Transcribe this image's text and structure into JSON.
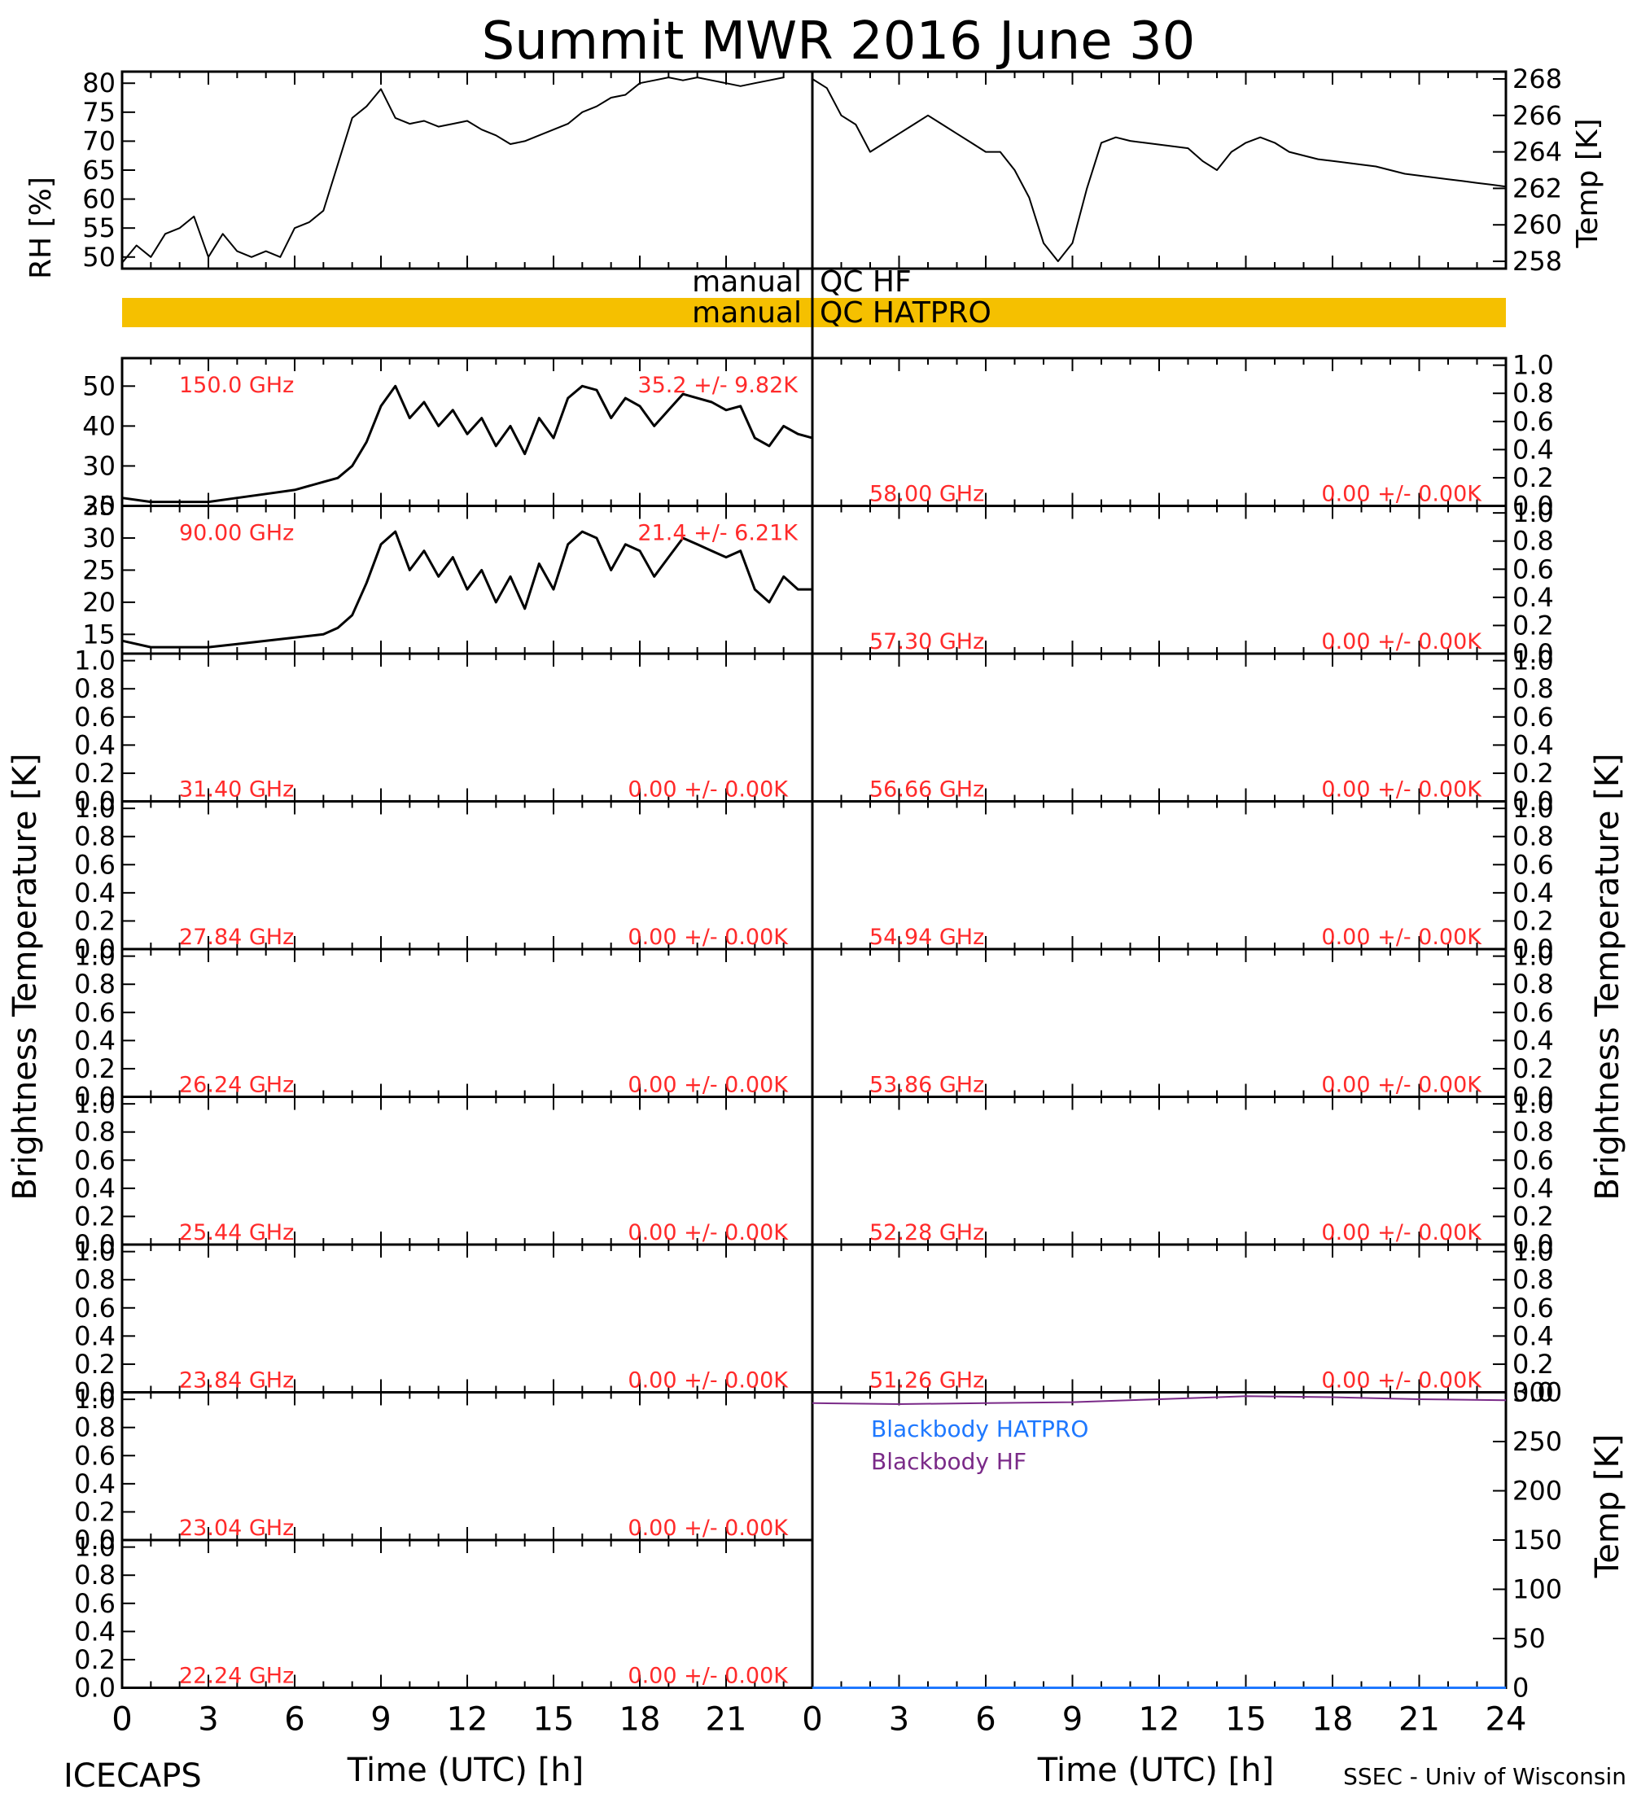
{
  "header": {
    "title": "Summit MWR 2016 June 30"
  },
  "footer": {
    "left_label": "ICECAPS",
    "credit": "SSEC - Univ of Wisconsin",
    "xlabel": "Time (UTC) [h]"
  },
  "axes": {
    "left_ylabel": "Brightness Temperature [K]",
    "right_ylabel": "Brightness Temperature [K]",
    "rh_ylabel": "RH [%]",
    "temp_ylabel": "Temp [K]",
    "bb_ylabel": "Temp [K]"
  },
  "qc": {
    "hf_left": "manual",
    "hf_right": "QC HF",
    "hatpro_left": "manual",
    "hatpro_right": "QC HATPRO",
    "hatpro_color": "#f5c000"
  },
  "legend": {
    "hatpro": "Blackbody HATPRO",
    "hf": "Blackbody HF",
    "hatpro_color": "#1e78ff",
    "hf_color": "#7a2a88"
  },
  "chart_data": [
    {
      "type": "line",
      "id": "rh",
      "ylabel": "RH [%]",
      "xlim": [
        0,
        24
      ],
      "ylim": [
        48,
        82
      ],
      "yticks": [
        50,
        55,
        60,
        65,
        70,
        75,
        80
      ],
      "x": [
        0,
        0.5,
        1,
        1.5,
        2,
        2.5,
        3,
        3.5,
        4,
        4.5,
        5,
        5.5,
        6,
        6.5,
        7,
        7.5,
        8,
        8.5,
        9,
        9.5,
        10,
        10.5,
        11,
        11.5,
        12,
        12.5,
        13,
        13.5,
        14,
        14.5,
        15,
        15.5,
        16,
        16.5,
        17,
        17.5,
        18,
        18.5,
        19,
        19.5,
        20,
        20.5,
        21,
        21.5,
        22,
        22.5,
        23
      ],
      "y": [
        49,
        52,
        50,
        54,
        55,
        57,
        50,
        54,
        51,
        50,
        51,
        50,
        55,
        56,
        58,
        66,
        74,
        76,
        79,
        74,
        73,
        73.5,
        72.5,
        73,
        73.5,
        72,
        71,
        69.5,
        70,
        71,
        72,
        73,
        75,
        76,
        77.5,
        78,
        80,
        80.5,
        81,
        80.5,
        81,
        80.5,
        80,
        79.5,
        80,
        80.5,
        81
      ]
    },
    {
      "type": "line",
      "id": "temp",
      "ylabel": "Temp [K]",
      "xlim": [
        0,
        24
      ],
      "ylim": [
        257.6,
        268.4
      ],
      "yticks": [
        258,
        260,
        262,
        264,
        266,
        268
      ],
      "x": [
        0,
        0.5,
        1,
        1.5,
        2,
        2.5,
        3,
        3.5,
        4,
        4.5,
        5,
        5.5,
        6,
        6.5,
        7,
        7.5,
        8,
        8.5,
        9,
        9.5,
        10,
        10.5,
        11,
        11.5,
        12,
        12.5,
        13,
        13.5,
        14,
        14.5,
        15,
        15.5,
        16,
        16.5,
        17,
        17.5,
        18,
        18.5,
        19,
        19.5,
        20,
        20.5,
        21,
        21.5,
        22,
        22.5,
        23,
        23.5,
        24
      ],
      "y": [
        268,
        267.5,
        266,
        265.5,
        264,
        264.5,
        265,
        265.5,
        266,
        265.5,
        265,
        264.5,
        264,
        264,
        263,
        261.5,
        259,
        258,
        259,
        262,
        264.5,
        264.8,
        264.6,
        264.5,
        264.4,
        264.3,
        264.2,
        263.5,
        263,
        264,
        264.5,
        264.8,
        264.5,
        264,
        263.8,
        263.6,
        263.5,
        263.4,
        263.3,
        263.2,
        263,
        262.8,
        262.7,
        262.6,
        262.5,
        262.4,
        262.3,
        262.2,
        262.1
      ]
    },
    {
      "type": "line",
      "id": "ch150",
      "label": "150.0 GHz",
      "stats": "35.2 +/- 9.82K",
      "xlim": [
        0,
        24
      ],
      "ylim": [
        20,
        57
      ],
      "yticks": [
        20,
        30,
        40,
        50
      ],
      "x": [
        0,
        1,
        2,
        3,
        4,
        5,
        6,
        7,
        7.5,
        8,
        8.5,
        9,
        9.5,
        10,
        10.5,
        11,
        11.5,
        12,
        12.5,
        13,
        13.5,
        14,
        14.5,
        15,
        15.5,
        16,
        16.5,
        17,
        17.5,
        18,
        18.5,
        19,
        19.5,
        20,
        20.5,
        21,
        21.5,
        22,
        22.5,
        23,
        23.5,
        24
      ],
      "y": [
        22,
        21,
        21,
        21,
        22,
        23,
        24,
        26,
        27,
        30,
        36,
        45,
        50,
        42,
        46,
        40,
        44,
        38,
        42,
        35,
        40,
        33,
        42,
        37,
        47,
        50,
        49,
        42,
        47,
        45,
        40,
        44,
        48,
        47,
        46,
        44,
        45,
        37,
        35,
        40,
        38,
        37
      ]
    },
    {
      "type": "line",
      "id": "ch90",
      "label": "90.00 GHz",
      "stats": "21.4 +/- 6.21K",
      "xlim": [
        0,
        24
      ],
      "ylim": [
        12,
        35
      ],
      "yticks": [
        15,
        20,
        25,
        30,
        35
      ],
      "x": [
        0,
        1,
        2,
        3,
        4,
        5,
        6,
        7,
        7.5,
        8,
        8.5,
        9,
        9.5,
        10,
        10.5,
        11,
        11.5,
        12,
        12.5,
        13,
        13.5,
        14,
        14.5,
        15,
        15.5,
        16,
        16.5,
        17,
        17.5,
        18,
        18.5,
        19,
        19.5,
        20,
        20.5,
        21,
        21.5,
        22,
        22.5,
        23,
        23.5,
        24
      ],
      "y": [
        14,
        13,
        13,
        13,
        13.5,
        14,
        14.5,
        15,
        16,
        18,
        23,
        29,
        31,
        25,
        28,
        24,
        27,
        22,
        25,
        20,
        24,
        19,
        26,
        22,
        29,
        31,
        30,
        25,
        29,
        28,
        24,
        27,
        30,
        29,
        28,
        27,
        28,
        22,
        20,
        24,
        22,
        22
      ]
    },
    {
      "type": "line",
      "id": "bb",
      "ylabel": "Temp [K]",
      "xlim": [
        0,
        24
      ],
      "ylim": [
        0,
        300
      ],
      "yticks": [
        0,
        50,
        100,
        150,
        200,
        250,
        300
      ],
      "series": [
        {
          "name": "Blackbody HATPRO",
          "x": [
            0,
            24
          ],
          "y": [
            0,
            0
          ]
        },
        {
          "name": "Blackbody HF",
          "x": [
            0,
            3,
            6,
            9,
            12,
            15,
            18,
            21,
            24
          ],
          "y": [
            289,
            288,
            289,
            290,
            293,
            296,
            295,
            293,
            292
          ]
        }
      ]
    }
  ],
  "empty_panels": {
    "left": [
      {
        "freq": "31.40 GHz",
        "stats": "0.00 +/- 0.00K"
      },
      {
        "freq": "27.84 GHz",
        "stats": "0.00 +/- 0.00K"
      },
      {
        "freq": "26.24 GHz",
        "stats": "0.00 +/- 0.00K"
      },
      {
        "freq": "25.44 GHz",
        "stats": "0.00 +/- 0.00K"
      },
      {
        "freq": "23.84 GHz",
        "stats": "0.00 +/- 0.00K"
      },
      {
        "freq": "23.04 GHz",
        "stats": "0.00 +/- 0.00K"
      },
      {
        "freq": "22.24 GHz",
        "stats": "0.00 +/- 0.00K"
      }
    ],
    "right": [
      {
        "freq": "58.00 GHz",
        "stats": "0.00 +/- 0.00K"
      },
      {
        "freq": "57.30 GHz",
        "stats": "0.00 +/- 0.00K"
      },
      {
        "freq": "56.66 GHz",
        "stats": "0.00 +/- 0.00K"
      },
      {
        "freq": "54.94 GHz",
        "stats": "0.00 +/- 0.00K"
      },
      {
        "freq": "53.86 GHz",
        "stats": "0.00 +/- 0.00K"
      },
      {
        "freq": "52.28 GHz",
        "stats": "0.00 +/- 0.00K"
      },
      {
        "freq": "51.26 GHz",
        "stats": "0.00 +/- 0.00K"
      }
    ],
    "ytick_labels": [
      "0.0",
      "0.2",
      "0.4",
      "0.6",
      "0.8",
      "1.0"
    ]
  },
  "x_ticks": {
    "left": [
      "0",
      "3",
      "6",
      "9",
      "12",
      "15",
      "18",
      "21"
    ],
    "right": [
      "0",
      "3",
      "6",
      "9",
      "12",
      "15",
      "18",
      "21",
      "24"
    ]
  }
}
